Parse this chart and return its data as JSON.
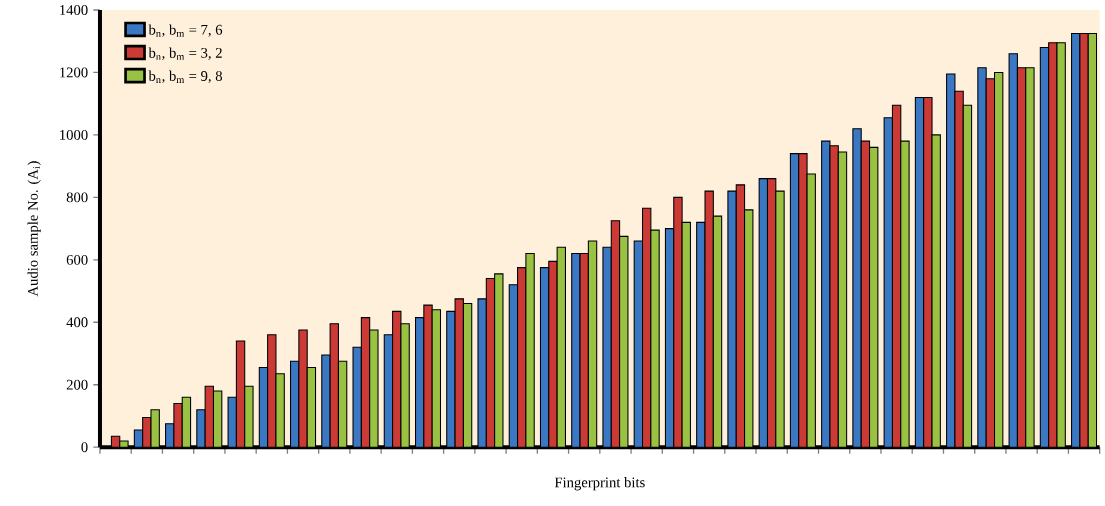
{
  "chart_data": {
    "type": "bar",
    "xlabel": "Fingerprint bits",
    "ylabel": "Audio sample No. (A$_{i}$)",
    "categories": [
      null,
      null,
      null,
      null,
      null,
      null,
      null,
      null,
      null,
      null,
      null,
      null,
      null,
      null,
      null,
      null,
      null,
      null,
      null,
      null,
      null,
      null,
      null,
      null,
      null,
      null,
      null,
      null,
      null,
      null,
      null,
      null
    ],
    "series": [
      {
        "name": "b$_{n}$, b$_{m}$ = 7, 6",
        "color": "#3a78c4",
        "values": [
          0,
          55,
          75,
          120,
          160,
          255,
          275,
          295,
          320,
          360,
          415,
          435,
          475,
          520,
          575,
          620,
          640,
          660,
          700,
          720,
          820,
          860,
          940,
          980,
          1020,
          1055,
          1120,
          1195,
          1215,
          1260,
          1280,
          1325
        ]
      },
      {
        "name": "b$_{n}$, b$_{m}$ = 3, 2",
        "color": "#cc3a35",
        "values": [
          35,
          95,
          140,
          195,
          340,
          360,
          375,
          395,
          415,
          435,
          455,
          475,
          540,
          575,
          595,
          620,
          725,
          765,
          800,
          820,
          840,
          860,
          940,
          965,
          980,
          1095,
          1120,
          1140,
          1180,
          1215,
          1295,
          1325
        ]
      },
      {
        "name": "b$_{n}$, b$_{m}$ = 9, 8",
        "color": "#99c243",
        "values": [
          20,
          120,
          160,
          180,
          195,
          235,
          255,
          275,
          375,
          395,
          440,
          460,
          555,
          620,
          640,
          660,
          675,
          695,
          720,
          740,
          760,
          820,
          875,
          945,
          960,
          980,
          1000,
          1095,
          1200,
          1215,
          1295,
          1325
        ]
      }
    ],
    "ylim": [
      0,
      1400
    ],
    "yticks": [
      0,
      200,
      400,
      600,
      800,
      1000,
      1200,
      1400
    ],
    "legend": "top left"
  }
}
